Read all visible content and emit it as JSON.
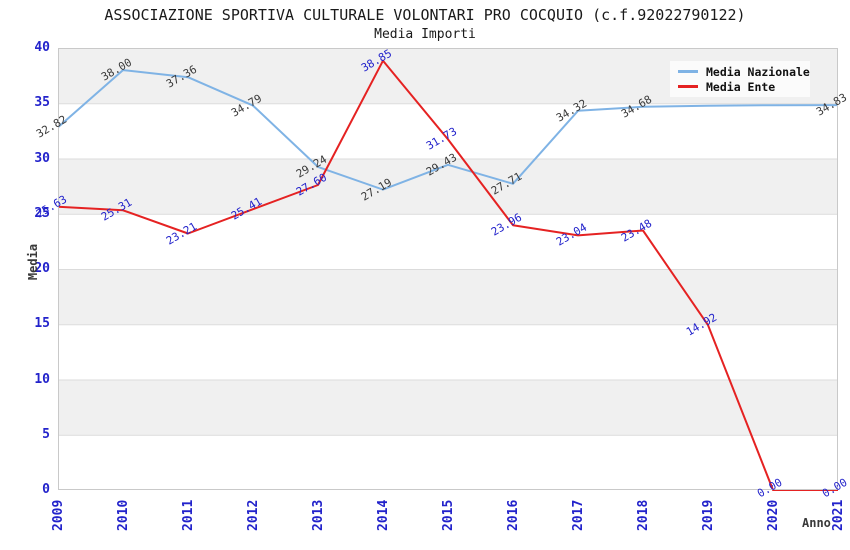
{
  "title": "ASSOCIAZIONE SPORTIVA CULTURALE VOLONTARI PRO COCQUIO (c.f.92022790122)",
  "subtitle": "Media Importi",
  "chart_data": {
    "type": "line",
    "x": [
      "2009",
      "2010",
      "2011",
      "2012",
      "2013",
      "2014",
      "2015",
      "2016",
      "2017",
      "2018",
      "2019",
      "2020",
      "2021"
    ],
    "xlabel": "Anno",
    "ylabel": "Media",
    "ylim": [
      0,
      40
    ],
    "ytick_step": 5,
    "yticks": [
      0,
      5,
      10,
      15,
      20,
      25,
      30,
      35,
      40
    ],
    "grid": "horizontal-bands-alternating",
    "legend_position": "top-right",
    "series": [
      {
        "name": "Media Nazionale",
        "color": "#7FB3E5",
        "label_color": "#3A3A3A",
        "values": [
          32.82,
          38.0,
          37.36,
          34.79,
          29.24,
          27.19,
          29.43,
          27.71,
          34.32,
          34.68,
          34.78,
          34.82,
          34.83
        ],
        "labels": [
          "32.82",
          "38.00",
          "37.36",
          "34.79",
          "29.24",
          "27.19",
          "29.43",
          "27.71",
          "34.32",
          "34.68",
          null,
          null,
          "34.83"
        ]
      },
      {
        "name": "Media Ente",
        "color": "#E52222",
        "label_color": "#2323CB",
        "values": [
          25.63,
          25.31,
          23.21,
          25.41,
          27.6,
          38.85,
          31.73,
          23.96,
          23.04,
          23.48,
          14.92,
          0.0,
          0.0
        ],
        "labels": [
          "25.63",
          "25.31",
          "23.21",
          "25.41",
          "27.60",
          "38.85",
          "31.73",
          "23.96",
          "23.04",
          "23.48",
          "14.92",
          "0.00",
          "0.00"
        ]
      }
    ],
    "colors": {
      "axis_tick": "#2323CB",
      "band_gray": "#F0F0F0",
      "grid_line": "#DBDBDB",
      "plot_border": "#C9C9C9",
      "legend_bg": "#FBFBFB",
      "title_text": "#1A1A1A",
      "axis_title": "#3A3A3A"
    }
  }
}
